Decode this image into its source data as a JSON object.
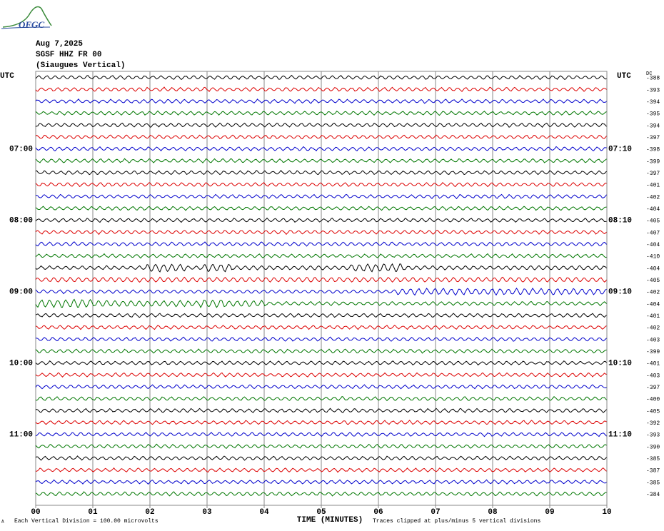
{
  "header": {
    "logo": "OFGC",
    "date": "Aug 7,2025",
    "station": "SGSF HHZ FR 00",
    "location": "(Siaugues Vertical)"
  },
  "left_labels": {
    "top": "UTC",
    "hours": [
      "07:00",
      "08:00",
      "09:00",
      "10:00",
      "11:00"
    ]
  },
  "right_labels": {
    "top": "UTC",
    "hours": [
      "07:10",
      "08:10",
      "09:10",
      "10:10",
      "11:10"
    ]
  },
  "dc": {
    "title": "DC",
    "values": [
      "-388",
      "-393",
      "-394",
      "-395",
      "-394",
      "-397",
      "-398",
      "-399",
      "-397",
      "-401",
      "-402",
      "-404",
      "-405",
      "-407",
      "-404",
      "-410",
      "-404",
      "-405",
      "-402",
      "-404",
      "-401",
      "-402",
      "-403",
      "-399",
      "-401",
      "-403",
      "-397",
      "-400",
      "-405",
      "-392",
      "-393",
      "-390",
      "-385",
      "-387",
      "-385",
      "-384"
    ]
  },
  "x_axis": {
    "ticks": [
      "00",
      "01",
      "02",
      "03",
      "04",
      "05",
      "06",
      "07",
      "08",
      "09",
      "10"
    ],
    "title": "TIME (MINUTES)"
  },
  "footer": {
    "mark": "A",
    "scale": "Each Vertical Division =  100.00 microvolts",
    "clip": "Traces clipped at plus/minus 5 vertical divisions"
  }
}
